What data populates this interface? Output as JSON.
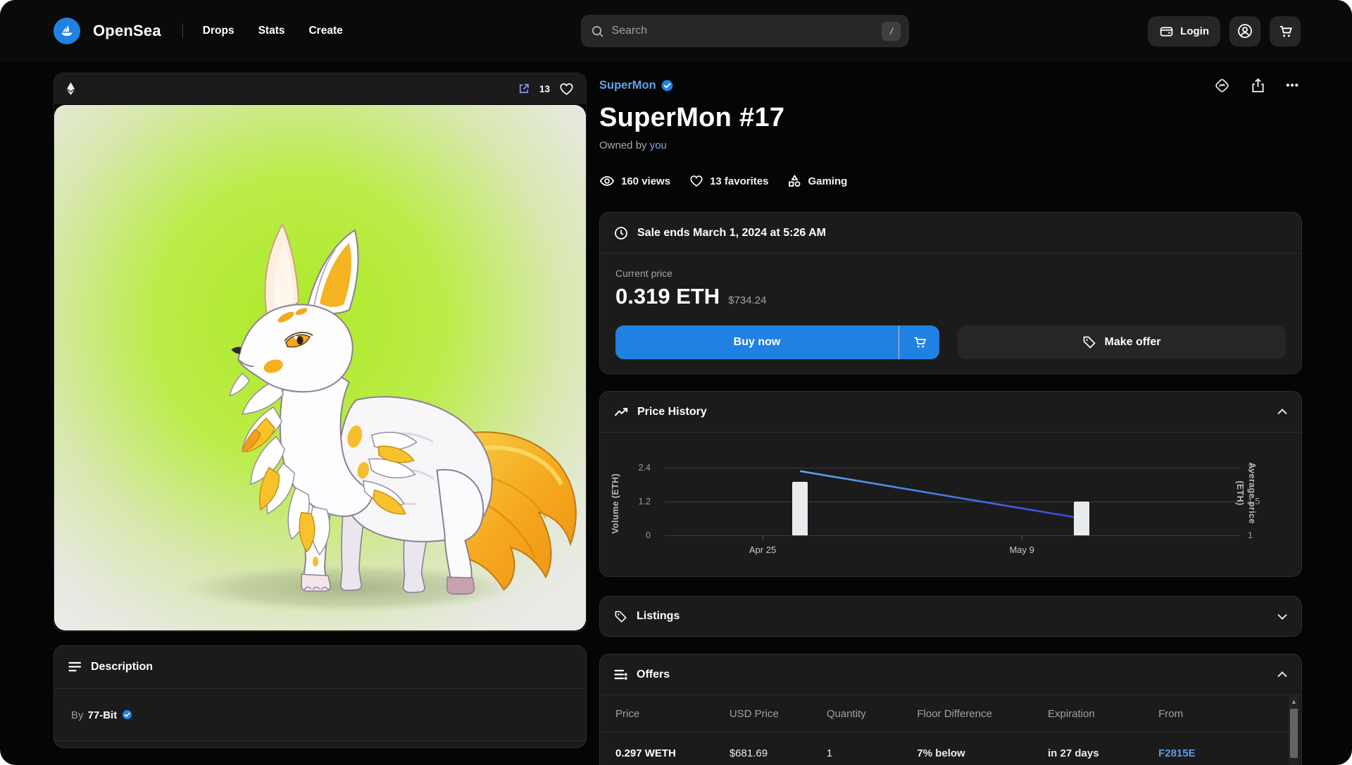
{
  "nav": {
    "brand": "OpenSea",
    "links": [
      {
        "label": "Drops"
      },
      {
        "label": "Stats"
      },
      {
        "label": "Create"
      }
    ],
    "search": {
      "placeholder": "Search",
      "shortcut": "/"
    },
    "login_label": "Login"
  },
  "media": {
    "favorite_count": "13"
  },
  "item": {
    "collection": "SuperMon",
    "title": "SuperMon #17",
    "owned_by_prefix": "Owned by",
    "owner": "you",
    "stats": [
      {
        "icon": "eye-icon",
        "label": "160 views"
      },
      {
        "icon": "heart-icon",
        "label": "13 favorites"
      },
      {
        "icon": "category-icon",
        "label": "Gaming"
      }
    ],
    "more_icon_glyph": "•••"
  },
  "sale": {
    "ends_text": "Sale ends March 1, 2024 at 5:26 AM",
    "current_price_label": "Current price",
    "price_eth": "0.319 ETH",
    "price_usd": "$734.24",
    "buy_label": "Buy now",
    "offer_label": "Make offer"
  },
  "chart_data": {
    "type": "bar",
    "title": "Price History",
    "x": [
      "Apr 25",
      "May 9"
    ],
    "series": [
      {
        "name": "Volume (ETH)",
        "type": "bar",
        "values": [
          1.9,
          1.2
        ]
      },
      {
        "name": "Average price (ETH)",
        "type": "line",
        "values": [
          1.95,
          1.25
        ]
      }
    ],
    "left_axis": {
      "label": "Volume (ETH)",
      "ticks": [
        "2.4",
        "1.2",
        "0"
      ],
      "range": [
        0,
        2.4
      ]
    },
    "right_axis": {
      "label": "Average price\n(ETH)",
      "ticks": [
        "2",
        "1.5",
        "1"
      ],
      "range": [
        1,
        2
      ]
    },
    "grid": true,
    "legend_position": "none",
    "bar_centers_pct": [
      23.5,
      72.4
    ],
    "xtick_pct": [
      17,
      62
    ],
    "bar_color": "#e8eaee",
    "line_gradient": [
      "#58a9f1",
      "#3647de"
    ]
  },
  "listings": {
    "title": "Listings"
  },
  "offers": {
    "title": "Offers",
    "columns": [
      "Price",
      "USD Price",
      "Quantity",
      "Floor Difference",
      "Expiration",
      "From"
    ],
    "rows": [
      {
        "price": "0.297 WETH",
        "usd": "$681.69",
        "quantity": "1",
        "floor": "7% below",
        "expiration": "in 27 days",
        "from": "F2815E"
      }
    ]
  },
  "description": {
    "title": "Description",
    "by_prefix": "By",
    "author": "77-Bit"
  },
  "colors": {
    "accent_blue": "#2081e2",
    "link_blue": "#64a0e4",
    "panel_bg": "#1b1b1b",
    "page_bg": "#050505",
    "nft_glow_green": "#b2ed2f"
  }
}
